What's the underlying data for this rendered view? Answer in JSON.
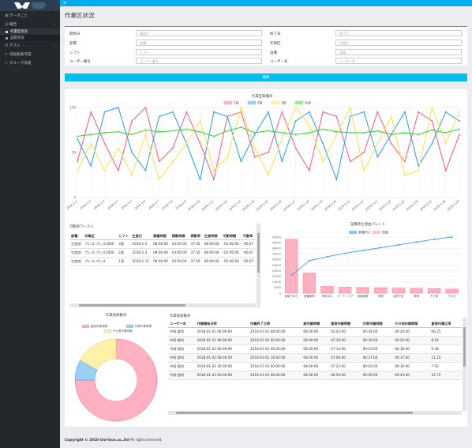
{
  "sidebar": {
    "items": [
      {
        "label": "データごと"
      },
      {
        "label": "報告"
      },
      {
        "label": "作業区状況",
        "sub": true,
        "active": true
      },
      {
        "label": "品質状況",
        "sub": true
      },
      {
        "label": "テスト"
      },
      {
        "label": "日程表表作成"
      },
      {
        "label": "グループ作成"
      }
    ]
  },
  "header": {
    "title": "作業区状況"
  },
  "search": {
    "fields": [
      {
        "label": "開始日",
        "placeholder": "開始日"
      },
      {
        "label": "終了日",
        "placeholder": "終了日"
      },
      {
        "label": "部署",
        "placeholder": "部署"
      },
      {
        "label": "作業区",
        "placeholder": "作業区"
      },
      {
        "label": "シフト",
        "placeholder": "シフト"
      },
      {
        "label": "設備",
        "placeholder": "設備"
      },
      {
        "label": "ユーザー番号",
        "placeholder": "ユーザー番号"
      },
      {
        "label": "ユーザー名",
        "placeholder": "ユーザー名"
      }
    ],
    "button": "検索"
  },
  "line_chart_title": "作業区稼働率",
  "efficiency_title": "可動率ワースト",
  "efficiency_table": {
    "headers": [
      "部署",
      "作業区",
      "シフト",
      "生産日",
      "稼働時間",
      "稼動時間",
      "稼動率",
      "生産時間",
      "可動時間",
      "可動率"
    ],
    "rows": [
      [
        "生産部",
        "プレス-プレス1000",
        "3直",
        "2018-1-2",
        "08:00:00",
        "03:00:00",
        "37.50",
        "08:00:00",
        "-02:00:00",
        "-66.67"
      ],
      [
        "生産部",
        "プレス-プレス1000",
        "2直",
        "2018-1-3",
        "08:00:00",
        "03:00:00",
        "37.50",
        "08:00:00",
        "-02:00:00",
        "-66.67"
      ],
      [
        "生産部",
        "プレス-プレス",
        "1直",
        "2018-1-11",
        "08:00:00",
        "03:00:00",
        "37.50",
        "08:00:00",
        "-02:00:00",
        "-66.67"
      ]
    ]
  },
  "pareto_title": "設備停止理由パレート",
  "donut_title": "作業者稼動率",
  "operator_title": "作業者稼動率",
  "operator_table": {
    "headers": [
      "ユーザー名",
      "作業開始日時",
      "作業終了日時",
      "総作業時間",
      "直接作業時間",
      "付帯作業時間",
      "その他作業時間",
      "直接作業比率"
    ],
    "rows": [
      [
        "中岡 智尚",
        "2018-01-01 06:00:00",
        "2018-01-01 08:00:00",
        "08:00:00",
        "02:42:00",
        "04:44:00",
        "00:34:00",
        "66.25"
      ],
      [
        "中岡 智尚",
        "2018-01-01 08:00:00",
        "2018-01-02 00:00:00",
        "08:00:00",
        "07:10:00",
        "00:30:00",
        "00:20:00",
        "8.54"
      ],
      [
        "中岡 智尚",
        "2018-01-02 00:00:00",
        "2018-01-02 08:00:00",
        "08:00:00",
        "07:14:00",
        "00:10:00",
        "00:36:00",
        "9.38"
      ],
      [
        "中岡 智尚",
        "2018-01-02 08:00:00",
        "2018-01-02 16:00:00",
        "08:00:00",
        "07:06:00",
        "00:37:00",
        "00:17:00",
        "11.25"
      ],
      [
        "中岡 智尚",
        "2018-01-02 16:00:00",
        "2018-01-03 00:00:00",
        "08:00:00",
        "07:22:00",
        "00:02:00",
        "00:36:00",
        "7.92"
      ],
      [
        "中岡 智尚",
        "2018-01-03 00:00:00",
        "2018-01-03 08:00:00",
        "08:00:00",
        "06:50:00",
        "00:40:00",
        "00:20:00",
        "32.72"
      ]
    ]
  },
  "footer": {
    "copyright": "Copyright © 2018 Uni-face.co.,ltd",
    "rights": " All rights reserved."
  },
  "colors": {
    "accent": "#00aeef",
    "pink": "#ff6384",
    "blue": "#36a2eb",
    "yellow": "#ffe156",
    "green": "#33dd33"
  },
  "chart_data": [
    {
      "type": "line",
      "title": "作業区稼働率",
      "x": [
        "2018-1-1",
        "2018-1-2",
        "2018-1-3",
        "2018-1-4",
        "2018-1-5",
        "2018-1-6",
        "2018-1-7",
        "2018-1-8",
        "2018-1-9",
        "2018-1-10",
        "2018-1-11",
        "2018-1-12",
        "2018-1-13",
        "2018-1-14",
        "2018-1-15",
        "2018-1-16",
        "2018-1-17",
        "2018-1-18",
        "2018-1-19",
        "2018-1-20",
        "2018-1-21",
        "2018-1-22",
        "2018-1-23",
        "2018-1-24",
        "2018-1-25",
        "2018-1-26",
        "2018-1-27",
        "2018-1-28",
        "2018-1-29"
      ],
      "ylim": [
        0,
        100
      ],
      "yticks": [
        0,
        50,
        100
      ],
      "series": [
        {
          "name": "1直",
          "color": "#ff6384",
          "values": [
            40,
            95,
            60,
            30,
            85,
            100,
            40,
            55,
            95,
            60,
            20,
            90,
            95,
            45,
            50,
            95,
            55,
            30,
            95,
            90,
            40,
            50,
            95,
            60,
            40,
            95,
            85,
            30,
            70
          ]
        },
        {
          "name": "2直",
          "color": "#36a2eb",
          "values": [
            65,
            35,
            95,
            100,
            50,
            30,
            90,
            95,
            60,
            20,
            95,
            90,
            40,
            70,
            95,
            40,
            85,
            95,
            60,
            20,
            90,
            95,
            45,
            70,
            95,
            35,
            60,
            95,
            85
          ]
        },
        {
          "name": "3直",
          "color": "#ffe156",
          "values": [
            30,
            60,
            30,
            55,
            25,
            70,
            20,
            40,
            60,
            85,
            30,
            45,
            100,
            55,
            25,
            65,
            100,
            80,
            40,
            70,
            100,
            30,
            60,
            90,
            25,
            30,
            100,
            60,
            95
          ]
        },
        {
          "name": "全直",
          "color": "#33dd33",
          "values": [
            68,
            70,
            72,
            73,
            70,
            75,
            73,
            74,
            76,
            73,
            68,
            74,
            78,
            72,
            74,
            72,
            70,
            72,
            76,
            73,
            72,
            72,
            74,
            70,
            72,
            70,
            75,
            72,
            76
          ]
        }
      ]
    },
    {
      "type": "bar",
      "title": "設備停止理由パレート",
      "categories": [
        "段取り待ち",
        "設備故障",
        "材料待ち",
        "マーティング",
        "設備調整",
        "停電",
        "品質不良",
        "清掃",
        "その他",
        "そのた"
      ],
      "ylim": [
        0,
        50000
      ],
      "series": [
        {
          "name": "累積(%)",
          "color": "#36a2eb",
          "values": [
            32,
            58,
            65,
            71,
            76,
            81,
            86,
            91,
            96,
            100
          ]
        },
        {
          "name": "時間",
          "color": "#ff9cb4",
          "values": [
            48000,
            18000,
            6000,
            5500,
            5000,
            4800,
            4500,
            4300,
            4100,
            3600
          ]
        }
      ]
    },
    {
      "type": "pie",
      "title": "作業者稼動率",
      "categories": [
        "直接作業時間",
        "付帯作業時間",
        "その他作業時間"
      ],
      "values": [
        75,
        8,
        17
      ],
      "colors": [
        "#ffb1c1",
        "#9ad0f5",
        "#fff2a8"
      ]
    }
  ]
}
